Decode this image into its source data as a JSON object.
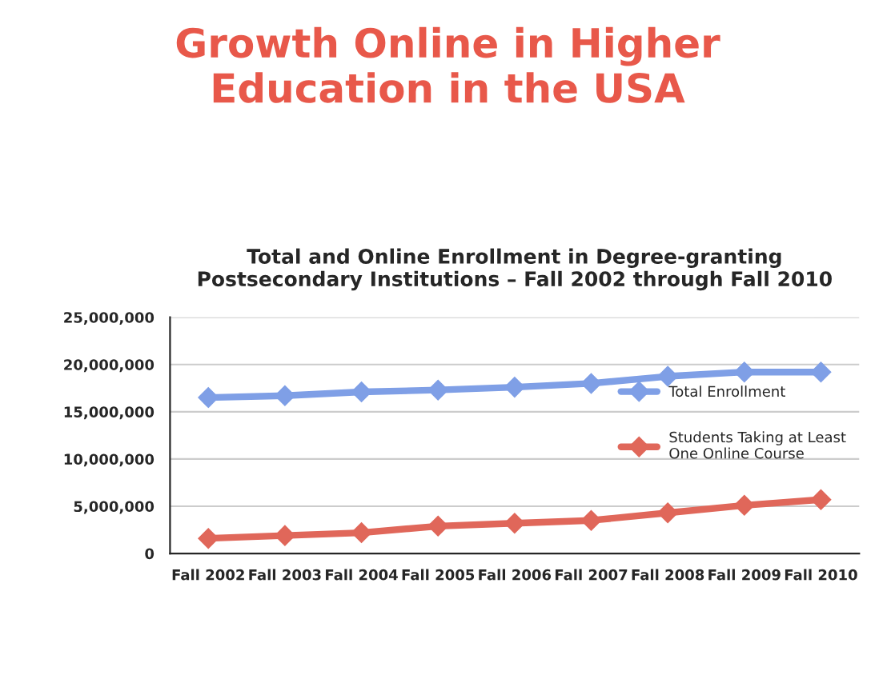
{
  "chart_data": {
    "type": "line",
    "title": "Growth Online in Higher\nEducation in the USA",
    "subtitle": "Total and Online Enrollment in Degree-granting\nPostsecondary Institutions – Fall 2002 through Fall 2010",
    "categories": [
      "Fall 2002",
      "Fall 2003",
      "Fall 2004",
      "Fall 2005",
      "Fall 2006",
      "Fall 2007",
      "Fall 2008",
      "Fall 2009",
      "Fall 2010"
    ],
    "series": [
      {
        "name": "Total Enrollment",
        "color": "#7f9fe6",
        "values": [
          16500000,
          16700000,
          17100000,
          17300000,
          17600000,
          18000000,
          18750000,
          19200000,
          19200000
        ]
      },
      {
        "name": "Students Taking at Least\nOne Online Course",
        "color": "#e0675a",
        "values": [
          1600000,
          1900000,
          2200000,
          2900000,
          3200000,
          3500000,
          4300000,
          5100000,
          5700000
        ]
      }
    ],
    "ylim": [
      0,
      25000000
    ],
    "yticks": [
      0,
      {
        "value": 5000000,
        "label": "5,000,000"
      },
      {
        "value": 10000000,
        "label": "10,000,000"
      },
      {
        "value": 15000000,
        "label": "15,000,000"
      },
      {
        "value": 20000000,
        "label": "20,000,000"
      },
      {
        "value": 25000000,
        "label": "25,000,000"
      }
    ],
    "grid": "y",
    "legend": "right",
    "marker": "diamond",
    "line_style": "solid"
  }
}
